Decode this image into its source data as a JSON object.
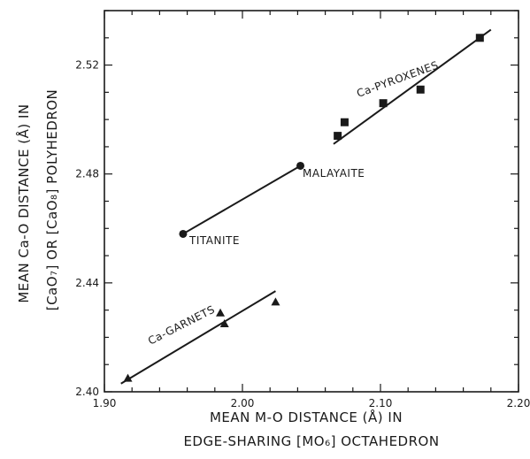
{
  "chart_data": {
    "type": "scatter",
    "title": "",
    "xlabel_line1": "MEAN M-O DISTANCE (Å) IN",
    "xlabel_line2": "EDGE-SHARING [MO₆] OCTAHEDRON",
    "ylabel_line1": "MEAN Ca-O DISTANCE (Å) IN",
    "ylabel_line2": "[CaO₇] OR [CaO₈] POLYHEDRON",
    "xlim": [
      1.9,
      2.2
    ],
    "ylim": [
      2.4,
      2.54
    ],
    "x_ticks": [
      {
        "value": 1.9,
        "label": "1.90"
      },
      {
        "value": 2.0,
        "label": "2.00"
      },
      {
        "value": 2.1,
        "label": "2.10"
      },
      {
        "value": 2.2,
        "label": "2.20"
      }
    ],
    "y_ticks": [
      {
        "value": 2.4,
        "label": "2.40"
      },
      {
        "value": 2.44,
        "label": "2.44"
      },
      {
        "value": 2.48,
        "label": "2.48"
      },
      {
        "value": 2.52,
        "label": "2.52"
      }
    ],
    "grid": false,
    "series": [
      {
        "name": "Ca-PYROXENES",
        "marker": "square",
        "points": [
          {
            "x": 2.069,
            "y": 2.494
          },
          {
            "x": 2.074,
            "y": 2.499
          },
          {
            "x": 2.102,
            "y": 2.506
          },
          {
            "x": 2.129,
            "y": 2.511
          },
          {
            "x": 2.172,
            "y": 2.53
          }
        ],
        "fit": [
          [
            2.066,
            2.491
          ],
          [
            2.18,
            2.533
          ]
        ]
      },
      {
        "name": "MALAYAITE / TITANITE",
        "marker": "circle",
        "points": [
          {
            "x": 1.957,
            "y": 2.458,
            "label": "TITANITE"
          },
          {
            "x": 2.042,
            "y": 2.483,
            "label": "MALAYAITE"
          }
        ],
        "fit": [
          [
            1.957,
            2.458
          ],
          [
            2.042,
            2.483
          ]
        ]
      },
      {
        "name": "Ca-GARNETS",
        "marker": "triangle",
        "points": [
          {
            "x": 1.917,
            "y": 2.405
          },
          {
            "x": 1.984,
            "y": 2.429
          },
          {
            "x": 1.987,
            "y": 2.425
          },
          {
            "x": 2.024,
            "y": 2.433
          }
        ],
        "fit": [
          [
            1.912,
            2.403
          ],
          [
            2.024,
            2.437
          ]
        ]
      }
    ]
  }
}
